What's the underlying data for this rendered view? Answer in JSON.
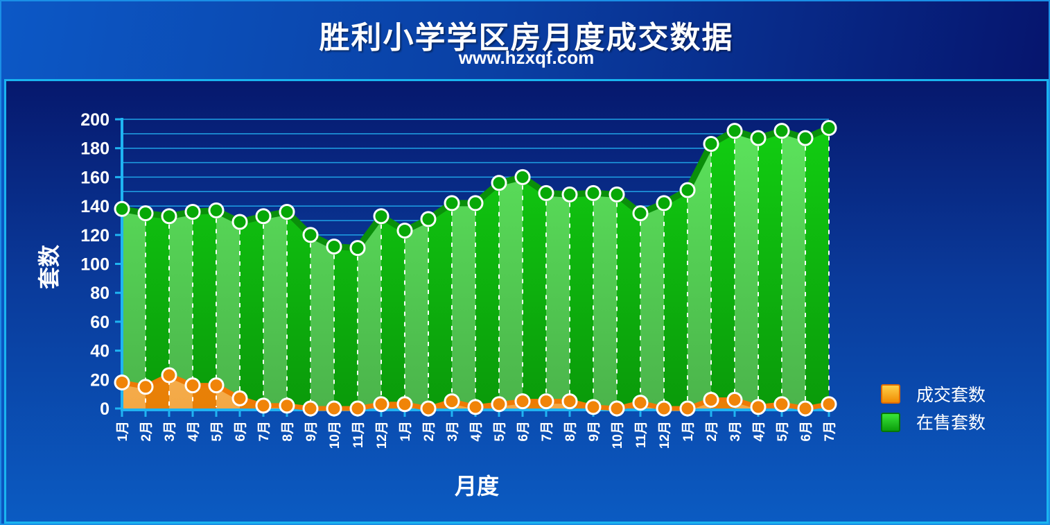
{
  "colors": {
    "sold": "#f59a12",
    "on_sale": "#14c314",
    "grid": "#1fa2e6",
    "background": "#0a3fa3"
  },
  "chart_data": {
    "type": "area",
    "title": "胜利小学学区房月度成交数据",
    "subtitle": "www.hzxqf.com",
    "xlabel": "月度",
    "ylabel": "套数",
    "ylim": [
      0,
      200
    ],
    "yticks": [
      0,
      20,
      40,
      60,
      80,
      100,
      120,
      140,
      160,
      180,
      200
    ],
    "grid": true,
    "legend_position": "right",
    "categories": [
      "1月",
      "2月",
      "3月",
      "4月",
      "5月",
      "6月",
      "7月",
      "8月",
      "9月",
      "10月",
      "11月",
      "12月",
      "1月",
      "2月",
      "3月",
      "4月",
      "5月",
      "6月",
      "7月",
      "8月",
      "9月",
      "10月",
      "11月",
      "12月",
      "1月",
      "2月",
      "3月",
      "4月",
      "5月",
      "6月",
      "7月"
    ],
    "series": [
      {
        "name": "成交套数",
        "values": [
          18,
          15,
          23,
          16,
          16,
          7,
          2,
          2,
          0,
          0,
          0,
          3,
          3,
          0,
          5,
          1,
          3,
          5,
          5,
          5,
          1,
          0,
          4,
          0,
          0,
          6,
          6,
          1,
          3,
          0,
          3
        ]
      },
      {
        "name": "在售套数",
        "values": [
          138,
          135,
          133,
          136,
          137,
          129,
          133,
          136,
          120,
          112,
          111,
          133,
          123,
          131,
          142,
          142,
          156,
          160,
          149,
          148,
          149,
          148,
          135,
          142,
          151,
          183,
          192,
          187,
          192,
          187,
          194
        ]
      }
    ]
  }
}
